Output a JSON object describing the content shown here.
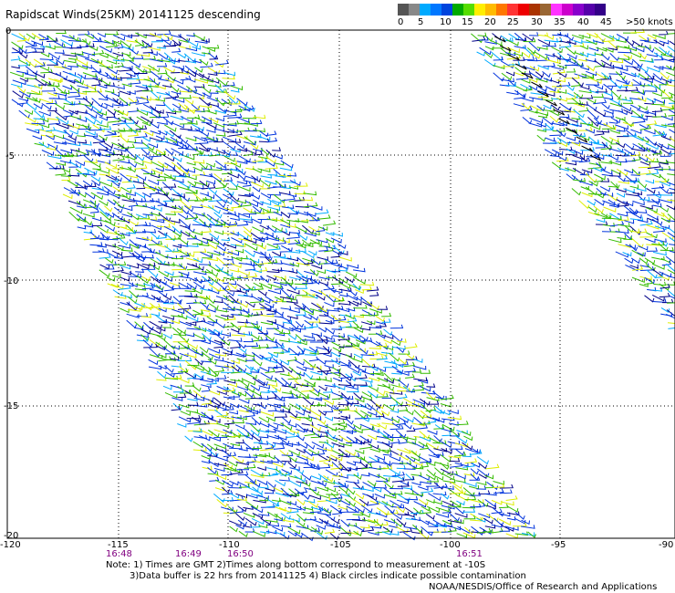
{
  "title": "Rapidscat Winds(25KM) 20141125 descending",
  "legend": {
    "colors": [
      "#555555",
      "#888888",
      "#00aaff",
      "#0077ff",
      "#0044dd",
      "#00aa00",
      "#55dd00",
      "#ffee00",
      "#ffbb00",
      "#ff7700",
      "#ff3333",
      "#ee0000",
      "#aa3300",
      "#996633",
      "#ff33ff",
      "#cc00cc",
      "#8800cc",
      "#5500aa",
      "#330088"
    ],
    "labels": [
      "0",
      "5",
      "10",
      "15",
      "20",
      "25",
      "30",
      "35",
      "40",
      "45",
      ">50 knots"
    ]
  },
  "map": {
    "x_ticks": [
      "-120",
      "-115",
      "-110",
      "-105",
      "-100",
      "-95",
      "-90"
    ],
    "y_ticks": [
      "0",
      "-5",
      "-10",
      "-15",
      "-20"
    ],
    "times": [
      "16:48",
      "16:49",
      "16:50",
      "16:51"
    ]
  },
  "notes": {
    "line1": "Note: 1) Times are GMT 2)Times along bottom correspond to measurement at -10S",
    "line2": "3)Data buffer is 22 hrs from 20141125 4) Black circles indicate possible contamination",
    "line3": "NOAA/NESDIS/Office of Research and Applications"
  },
  "colors": {
    "grid": "#000000",
    "wind_blue": "#0033dd",
    "wind_green": "#33bb00",
    "wind_cyan": "#00aaff",
    "wind_yellow": "#ddee00",
    "wind_darkblue": "#000088"
  }
}
